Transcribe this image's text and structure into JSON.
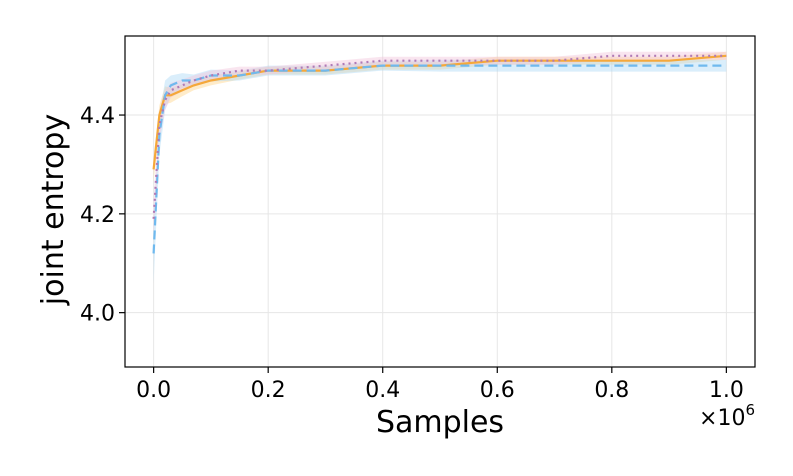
{
  "chart_data": {
    "type": "line",
    "title": "",
    "xlabel": "Samples",
    "ylabel": "joint entropy",
    "x_scale_label": "×10",
    "x_scale_exponent": "6",
    "xlim": [
      -0.05,
      1.05
    ],
    "ylim": [
      3.89,
      4.56
    ],
    "xticks": [
      0.0,
      0.2,
      0.4,
      0.6,
      0.8,
      1.0
    ],
    "xtick_labels": [
      "0.0",
      "0.2",
      "0.4",
      "0.6",
      "0.8",
      "1.0"
    ],
    "yticks": [
      4.0,
      4.2,
      4.4
    ],
    "ytick_labels": [
      "4.0",
      "4.2",
      "4.4"
    ],
    "grid": true,
    "legend": false,
    "x": [
      0.0,
      0.01,
      0.02,
      0.03,
      0.05,
      0.07,
      0.1,
      0.15,
      0.2,
      0.3,
      0.4,
      0.5,
      0.6,
      0.7,
      0.8,
      0.9,
      1.0
    ],
    "series": [
      {
        "style": "solid",
        "color": "#f5a83a",
        "band_color": "#ffd48a",
        "values": [
          4.29,
          4.4,
          4.44,
          4.44,
          4.45,
          4.46,
          4.47,
          4.48,
          4.49,
          4.49,
          4.5,
          4.5,
          4.51,
          4.51,
          4.51,
          4.51,
          4.52
        ],
        "band": [
          0.025,
          0.02,
          0.018,
          0.015,
          0.012,
          0.01,
          0.01,
          0.008,
          0.008,
          0.008,
          0.008,
          0.008,
          0.008,
          0.008,
          0.008,
          0.008,
          0.008
        ]
      },
      {
        "style": "dashed",
        "color": "#6fb9ee",
        "band_color": "#aedaf7",
        "values": [
          4.12,
          4.36,
          4.44,
          4.46,
          4.47,
          4.47,
          4.48,
          4.48,
          4.49,
          4.49,
          4.5,
          4.5,
          4.5,
          4.5,
          4.5,
          4.5,
          4.5
        ],
        "band": [
          0.06,
          0.04,
          0.03,
          0.02,
          0.015,
          0.012,
          0.012,
          0.01,
          0.01,
          0.01,
          0.01,
          0.012,
          0.012,
          0.012,
          0.012,
          0.012,
          0.012
        ]
      },
      {
        "style": "dotted",
        "color": "#b07ab5",
        "band_color": "#f2c6dc",
        "values": [
          4.19,
          4.38,
          4.43,
          4.45,
          4.46,
          4.47,
          4.48,
          4.49,
          4.49,
          4.5,
          4.51,
          4.51,
          4.51,
          4.51,
          4.52,
          4.52,
          4.52
        ],
        "band": [
          0.04,
          0.03,
          0.02,
          0.015,
          0.012,
          0.01,
          0.01,
          0.008,
          0.008,
          0.008,
          0.008,
          0.008,
          0.008,
          0.008,
          0.008,
          0.008,
          0.008
        ]
      }
    ]
  }
}
